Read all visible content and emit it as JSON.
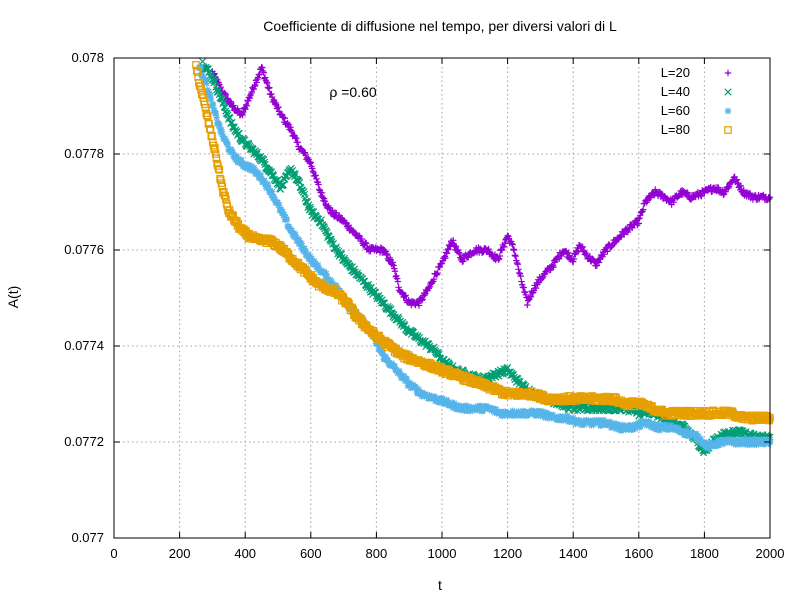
{
  "chart_data": {
    "type": "scatter",
    "title": "Coefficiente di diffusione nel tempo, per diversi valori di L",
    "xlabel": "t",
    "ylabel": "A(t)",
    "xlim": [
      0,
      2000
    ],
    "ylim": [
      0.077,
      0.078
    ],
    "x_ticks": [
      "0",
      "200",
      "400",
      "600",
      "800",
      "1000",
      "1200",
      "1400",
      "1600",
      "1800",
      "2000"
    ],
    "y_ticks": [
      "0.077",
      "0.0772",
      "0.0774",
      "0.0776",
      "0.0778",
      "0.078"
    ],
    "grid": true,
    "legend_position": "top-right",
    "annotation": {
      "text": "ρ =0.60",
      "x": 870,
      "y": 0.07786
    },
    "series": [
      {
        "name": "L=20",
        "marker": "plus",
        "color": "#9400d3",
        "points": [
          [
            300,
            0.07797
          ],
          [
            330,
            0.07793
          ],
          [
            360,
            0.0779
          ],
          [
            390,
            0.07788
          ],
          [
            420,
            0.07793
          ],
          [
            450,
            0.07798
          ],
          [
            480,
            0.07792
          ],
          [
            510,
            0.07788
          ],
          [
            540,
            0.07785
          ],
          [
            560,
            0.07782
          ],
          [
            600,
            0.07778
          ],
          [
            630,
            0.07772
          ],
          [
            660,
            0.07768
          ],
          [
            700,
            0.07766
          ],
          [
            740,
            0.07763
          ],
          [
            780,
            0.0776
          ],
          [
            820,
            0.0776
          ],
          [
            850,
            0.07757
          ],
          [
            870,
            0.07752
          ],
          [
            900,
            0.07749
          ],
          [
            930,
            0.07749
          ],
          [
            960,
            0.07752
          ],
          [
            980,
            0.07755
          ],
          [
            1000,
            0.07757
          ],
          [
            1030,
            0.07762
          ],
          [
            1060,
            0.07758
          ],
          [
            1100,
            0.0776
          ],
          [
            1140,
            0.0776
          ],
          [
            1170,
            0.07758
          ],
          [
            1200,
            0.07763
          ],
          [
            1220,
            0.0776
          ],
          [
            1240,
            0.07754
          ],
          [
            1260,
            0.07749
          ],
          [
            1280,
            0.07752
          ],
          [
            1300,
            0.07754
          ],
          [
            1340,
            0.07757
          ],
          [
            1370,
            0.0776
          ],
          [
            1400,
            0.07758
          ],
          [
            1420,
            0.07761
          ],
          [
            1440,
            0.07759
          ],
          [
            1470,
            0.07757
          ],
          [
            1500,
            0.0776
          ],
          [
            1530,
            0.07762
          ],
          [
            1560,
            0.07764
          ],
          [
            1600,
            0.07766
          ],
          [
            1620,
            0.0777
          ],
          [
            1650,
            0.07772
          ],
          [
            1680,
            0.07771
          ],
          [
            1700,
            0.0777
          ],
          [
            1730,
            0.07772
          ],
          [
            1760,
            0.07771
          ],
          [
            1800,
            0.07772
          ],
          [
            1830,
            0.07773
          ],
          [
            1860,
            0.07772
          ],
          [
            1890,
            0.07775
          ],
          [
            1920,
            0.07772
          ],
          [
            1950,
            0.07771
          ],
          [
            1980,
            0.07771
          ],
          [
            2000,
            0.07771
          ]
        ]
      },
      {
        "name": "L=40",
        "marker": "x",
        "color": "#009e73",
        "points": [
          [
            270,
            0.07799
          ],
          [
            300,
            0.07796
          ],
          [
            330,
            0.07791
          ],
          [
            360,
            0.07786
          ],
          [
            390,
            0.07783
          ],
          [
            420,
            0.07781
          ],
          [
            450,
            0.07779
          ],
          [
            480,
            0.07776
          ],
          [
            510,
            0.07773
          ],
          [
            540,
            0.07777
          ],
          [
            570,
            0.07773
          ],
          [
            600,
            0.07768
          ],
          [
            630,
            0.07766
          ],
          [
            660,
            0.07762
          ],
          [
            700,
            0.07758
          ],
          [
            740,
            0.07755
          ],
          [
            780,
            0.07752
          ],
          [
            820,
            0.07749
          ],
          [
            860,
            0.07746
          ],
          [
            900,
            0.07743
          ],
          [
            940,
            0.07741
          ],
          [
            980,
            0.07739
          ],
          [
            1000,
            0.07737
          ],
          [
            1040,
            0.07735
          ],
          [
            1080,
            0.07734
          ],
          [
            1120,
            0.07733
          ],
          [
            1160,
            0.07734
          ],
          [
            1200,
            0.07735
          ],
          [
            1240,
            0.07732
          ],
          [
            1280,
            0.0773
          ],
          [
            1320,
            0.07729
          ],
          [
            1360,
            0.07728
          ],
          [
            1400,
            0.07727
          ],
          [
            1440,
            0.07727
          ],
          [
            1480,
            0.07727
          ],
          [
            1520,
            0.07727
          ],
          [
            1560,
            0.07727
          ],
          [
            1600,
            0.07726
          ],
          [
            1650,
            0.07726
          ],
          [
            1700,
            0.07724
          ],
          [
            1740,
            0.07723
          ],
          [
            1780,
            0.0772
          ],
          [
            1800,
            0.07718
          ],
          [
            1840,
            0.07721
          ],
          [
            1880,
            0.07722
          ],
          [
            1920,
            0.07722
          ],
          [
            1960,
            0.07721
          ],
          [
            2000,
            0.07721
          ]
        ]
      },
      {
        "name": "L=60",
        "marker": "star",
        "color": "#56b4e9",
        "points": [
          [
            260,
            0.07798
          ],
          [
            280,
            0.07795
          ],
          [
            300,
            0.0779
          ],
          [
            330,
            0.07784
          ],
          [
            360,
            0.0778
          ],
          [
            390,
            0.07778
          ],
          [
            420,
            0.07777
          ],
          [
            450,
            0.07775
          ],
          [
            480,
            0.07772
          ],
          [
            510,
            0.07768
          ],
          [
            540,
            0.07764
          ],
          [
            570,
            0.07761
          ],
          [
            600,
            0.07758
          ],
          [
            640,
            0.07755
          ],
          [
            680,
            0.07752
          ],
          [
            720,
            0.07748
          ],
          [
            760,
            0.07745
          ],
          [
            790,
            0.07742
          ],
          [
            820,
            0.07738
          ],
          [
            860,
            0.07735
          ],
          [
            900,
            0.07732
          ],
          [
            940,
            0.0773
          ],
          [
            980,
            0.07729
          ],
          [
            1020,
            0.07728
          ],
          [
            1060,
            0.07727
          ],
          [
            1100,
            0.07727
          ],
          [
            1140,
            0.07727
          ],
          [
            1180,
            0.07726
          ],
          [
            1220,
            0.07726
          ],
          [
            1260,
            0.07726
          ],
          [
            1300,
            0.07726
          ],
          [
            1340,
            0.07725
          ],
          [
            1380,
            0.07725
          ],
          [
            1420,
            0.07724
          ],
          [
            1460,
            0.07724
          ],
          [
            1500,
            0.07724
          ],
          [
            1540,
            0.07723
          ],
          [
            1580,
            0.07723
          ],
          [
            1620,
            0.07724
          ],
          [
            1660,
            0.07723
          ],
          [
            1700,
            0.07723
          ],
          [
            1740,
            0.07722
          ],
          [
            1780,
            0.07721
          ],
          [
            1810,
            0.07719
          ],
          [
            1850,
            0.0772
          ],
          [
            1900,
            0.0772
          ],
          [
            1950,
            0.0772
          ],
          [
            2000,
            0.0772
          ]
        ]
      },
      {
        "name": "L=80",
        "marker": "square",
        "color": "#e69f00",
        "points": [
          [
            250,
            0.07798
          ],
          [
            270,
            0.07792
          ],
          [
            290,
            0.07786
          ],
          [
            310,
            0.0778
          ],
          [
            330,
            0.07773
          ],
          [
            350,
            0.07768
          ],
          [
            370,
            0.07766
          ],
          [
            390,
            0.07764
          ],
          [
            410,
            0.07763
          ],
          [
            440,
            0.07762
          ],
          [
            470,
            0.07762
          ],
          [
            500,
            0.07761
          ],
          [
            530,
            0.07759
          ],
          [
            560,
            0.07757
          ],
          [
            590,
            0.07755
          ],
          [
            620,
            0.07753
          ],
          [
            650,
            0.07752
          ],
          [
            680,
            0.07751
          ],
          [
            710,
            0.07749
          ],
          [
            740,
            0.07746
          ],
          [
            770,
            0.07744
          ],
          [
            800,
            0.07742
          ],
          [
            840,
            0.0774
          ],
          [
            880,
            0.07738
          ],
          [
            920,
            0.07737
          ],
          [
            960,
            0.07736
          ],
          [
            1000,
            0.07735
          ],
          [
            1040,
            0.07734
          ],
          [
            1080,
            0.07733
          ],
          [
            1120,
            0.07732
          ],
          [
            1160,
            0.07731
          ],
          [
            1200,
            0.0773
          ],
          [
            1240,
            0.0773
          ],
          [
            1280,
            0.0773
          ],
          [
            1320,
            0.07729
          ],
          [
            1360,
            0.07729
          ],
          [
            1400,
            0.07729
          ],
          [
            1440,
            0.07729
          ],
          [
            1480,
            0.07729
          ],
          [
            1520,
            0.07729
          ],
          [
            1560,
            0.07728
          ],
          [
            1600,
            0.07728
          ],
          [
            1640,
            0.07727
          ],
          [
            1680,
            0.07726
          ],
          [
            1720,
            0.07726
          ],
          [
            1760,
            0.07726
          ],
          [
            1800,
            0.07726
          ],
          [
            1840,
            0.07726
          ],
          [
            1880,
            0.07726
          ],
          [
            1920,
            0.07725
          ],
          [
            1960,
            0.07725
          ],
          [
            2000,
            0.07725
          ]
        ]
      }
    ]
  }
}
